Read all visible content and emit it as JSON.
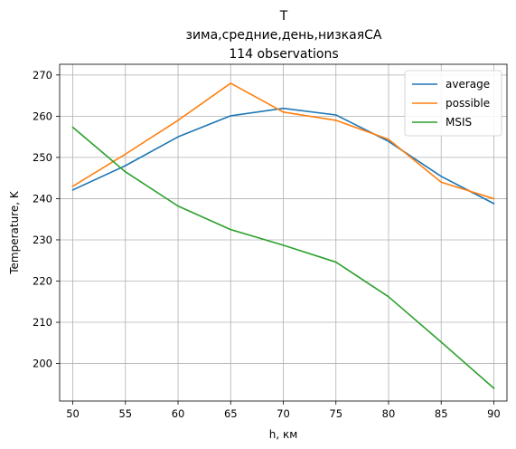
{
  "chart_data": {
    "type": "line",
    "title_lines": [
      "T",
      "зима,средние,день,низкаяСА",
      "114 observations"
    ],
    "xlabel": "h, км",
    "ylabel": "Temperature, K",
    "x": [
      50,
      55,
      60,
      65,
      70,
      75,
      80,
      85,
      90
    ],
    "xticks": [
      50,
      55,
      60,
      65,
      70,
      75,
      80,
      85,
      90
    ],
    "yticks": [
      200,
      210,
      220,
      230,
      240,
      250,
      260,
      270
    ],
    "xlim": [
      48.75,
      91.25
    ],
    "ylim": [
      190.9,
      272.6
    ],
    "grid": true,
    "legend_position": "upper-right",
    "series": [
      {
        "name": "average",
        "color": "#1f77b4",
        "values": [
          242.1,
          248.0,
          255.0,
          260.1,
          261.9,
          260.3,
          253.9,
          245.4,
          238.8
        ]
      },
      {
        "name": "possible",
        "color": "#ff7f0e",
        "values": [
          243.0,
          250.8,
          259.0,
          268.0,
          261.0,
          259.0,
          254.4,
          244.0,
          240.0
        ]
      },
      {
        "name": "MSIS",
        "color": "#2ca02c",
        "values": [
          257.3,
          246.5,
          238.2,
          232.5,
          228.7,
          224.6,
          216.2,
          205.2,
          194.0
        ]
      }
    ]
  }
}
